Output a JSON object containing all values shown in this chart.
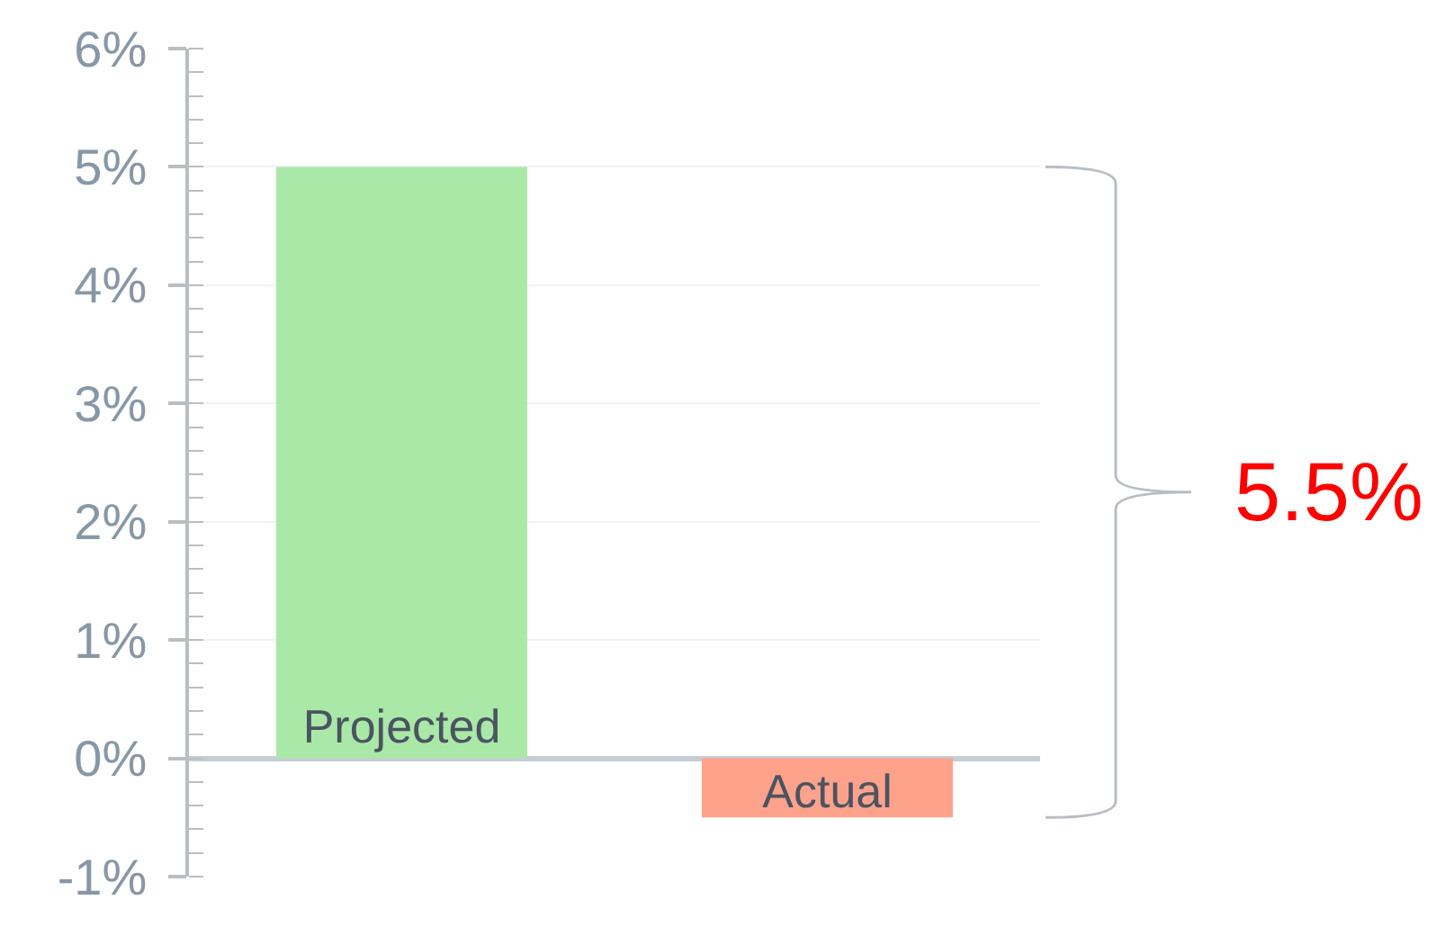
{
  "chart_data": {
    "type": "bar",
    "categories": [
      "Projected",
      "Actual"
    ],
    "values": [
      5,
      -0.5
    ],
    "colors": [
      "#aae8a7",
      "#ffa28c"
    ],
    "ylim": [
      -1,
      6
    ],
    "yticks": [
      {
        "value": -1,
        "label": "-1%"
      },
      {
        "value": 0,
        "label": "0%"
      },
      {
        "value": 1,
        "label": "1%"
      },
      {
        "value": 2,
        "label": "2%"
      },
      {
        "value": 3,
        "label": "3%"
      },
      {
        "value": 4,
        "label": "4%"
      },
      {
        "value": 5,
        "label": "5%"
      },
      {
        "value": 6,
        "label": "6%"
      }
    ],
    "grid": "y",
    "tick_labels": "y",
    "annotations": [
      "5.5%"
    ]
  }
}
